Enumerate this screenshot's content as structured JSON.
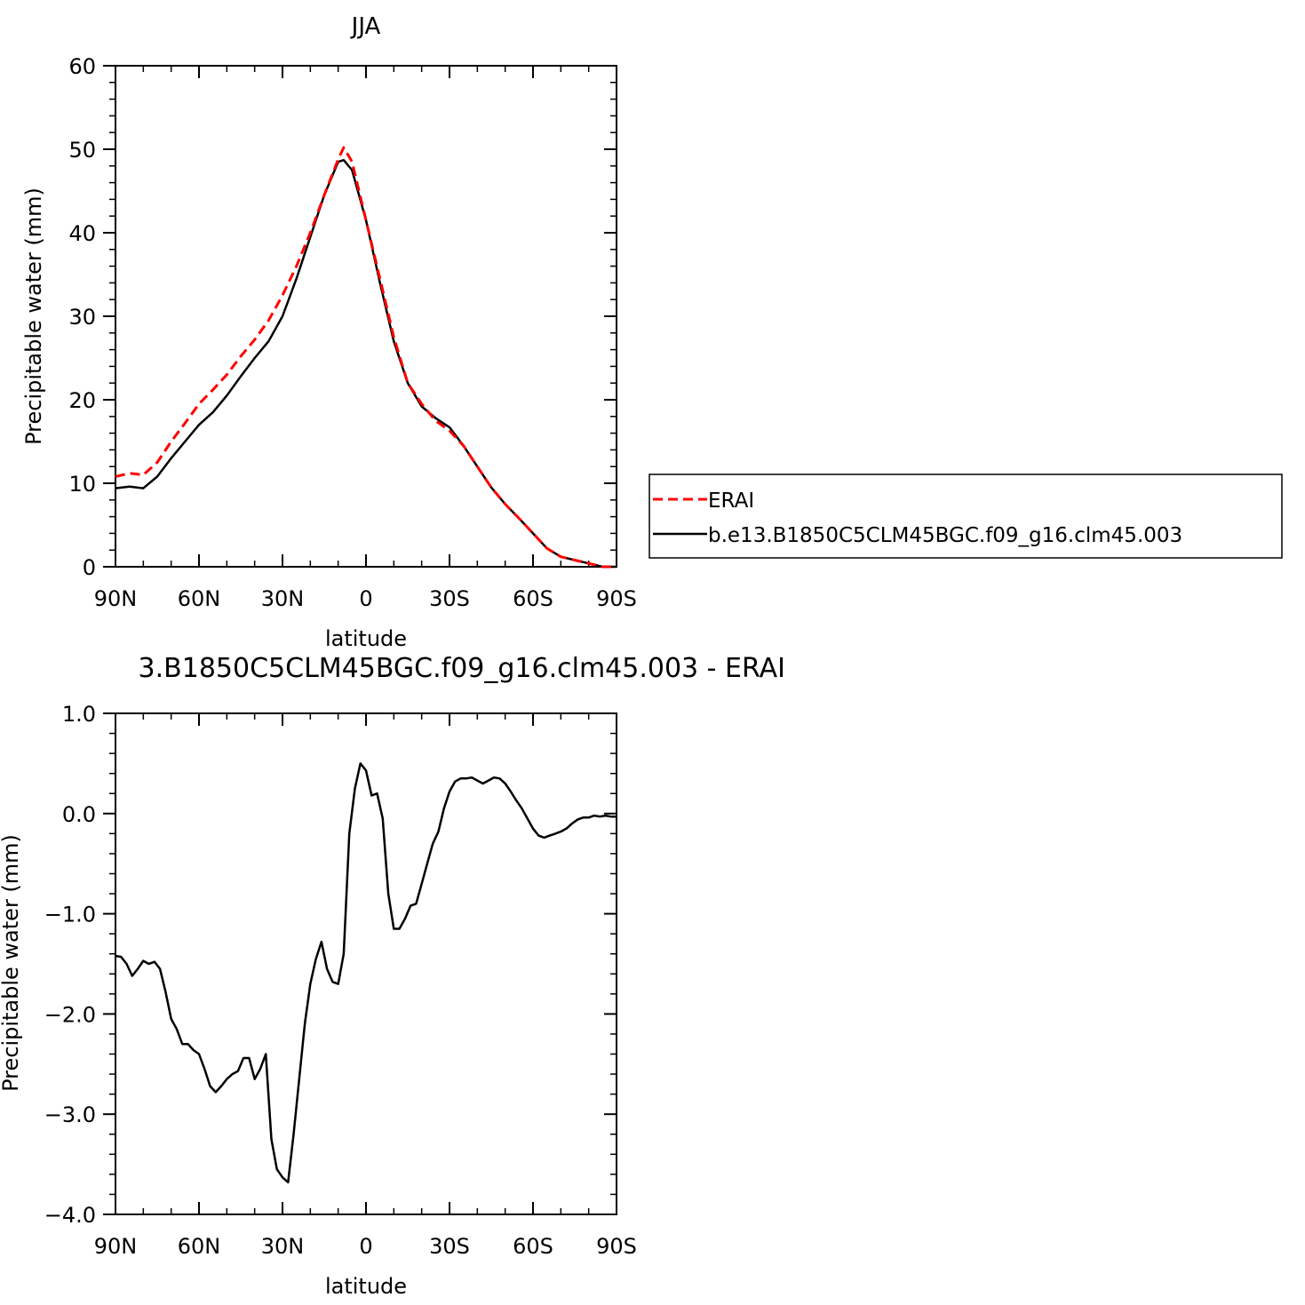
{
  "chart_data": [
    {
      "type": "line",
      "title": "JJA",
      "xlabel": "latitude",
      "ylabel": "Precipitable water (mm)",
      "xlim": [
        90,
        -90
      ],
      "ylim": [
        0,
        60
      ],
      "x_ticks": [
        {
          "value": 90,
          "label": "90N"
        },
        {
          "value": 60,
          "label": "60N"
        },
        {
          "value": 30,
          "label": "30N"
        },
        {
          "value": 0,
          "label": "0"
        },
        {
          "value": -30,
          "label": "30S"
        },
        {
          "value": -60,
          "label": "60S"
        },
        {
          "value": -90,
          "label": "90S"
        }
      ],
      "y_ticks": [
        {
          "value": 0,
          "label": "0"
        },
        {
          "value": 10,
          "label": "10"
        },
        {
          "value": 20,
          "label": "20"
        },
        {
          "value": 30,
          "label": "30"
        },
        {
          "value": 40,
          "label": "40"
        },
        {
          "value": 50,
          "label": "50"
        },
        {
          "value": 60,
          "label": "60"
        }
      ],
      "legend": {
        "placement": "right"
      },
      "series": [
        {
          "name": "ERAI",
          "color": "#ff0000",
          "dash": "dashed",
          "x": [
            90,
            85,
            80,
            75,
            70,
            65,
            60,
            55,
            50,
            45,
            40,
            35,
            30,
            25,
            20,
            15,
            10,
            8,
            5,
            0,
            -5,
            -10,
            -15,
            -20,
            -25,
            -30,
            -35,
            -40,
            -45,
            -50,
            -55,
            -60,
            -65,
            -70,
            -75,
            -80,
            -85,
            -90
          ],
          "y": [
            10.8,
            11.2,
            11.0,
            12.5,
            15.0,
            17.2,
            19.5,
            21.2,
            23.0,
            25.2,
            27.2,
            29.5,
            32.5,
            36.0,
            40.0,
            44.5,
            48.8,
            50.2,
            48.5,
            41.5,
            34.5,
            27.5,
            22.0,
            19.5,
            17.5,
            16.3,
            14.5,
            12.0,
            9.5,
            7.5,
            5.8,
            4.0,
            2.2,
            1.2,
            0.8,
            0.4,
            0.0,
            -0.2
          ]
        },
        {
          "name": "b.e13.B1850C5CLM45BGC.f09_g16.clm45.003",
          "color": "#000000",
          "dash": "solid",
          "x": [
            90,
            85,
            80,
            75,
            70,
            65,
            60,
            55,
            50,
            45,
            40,
            35,
            30,
            25,
            20,
            15,
            10,
            8,
            5,
            0,
            -5,
            -10,
            -15,
            -20,
            -25,
            -30,
            -35,
            -40,
            -45,
            -50,
            -55,
            -60,
            -65,
            -70,
            -75,
            -80,
            -85,
            -90
          ],
          "y": [
            9.4,
            9.6,
            9.4,
            10.8,
            13.0,
            15.0,
            17.0,
            18.5,
            20.5,
            22.8,
            25.0,
            27.0,
            30.0,
            34.5,
            39.5,
            44.5,
            48.5,
            48.7,
            47.5,
            41.5,
            34.0,
            27.0,
            22.0,
            19.2,
            17.8,
            16.7,
            14.5,
            12.0,
            9.5,
            7.5,
            5.8,
            4.0,
            2.2,
            1.2,
            0.8,
            0.4,
            0.0,
            -0.2
          ]
        }
      ]
    },
    {
      "type": "line",
      "title": "3.B1850C5CLM45BGC.f09_g16.clm45.003 - ERAI",
      "xlabel": "latitude",
      "ylabel": "Precipitable water (mm)",
      "xlim": [
        90,
        -90
      ],
      "ylim": [
        -4.0,
        1.0
      ],
      "x_ticks": [
        {
          "value": 90,
          "label": "90N"
        },
        {
          "value": 60,
          "label": "60N"
        },
        {
          "value": 30,
          "label": "30N"
        },
        {
          "value": 0,
          "label": "0"
        },
        {
          "value": -30,
          "label": "30S"
        },
        {
          "value": -60,
          "label": "60S"
        },
        {
          "value": -90,
          "label": "90S"
        }
      ],
      "y_ticks": [
        {
          "value": -4.0,
          "label": "-4.0"
        },
        {
          "value": -3.0,
          "label": "-3.0"
        },
        {
          "value": -2.0,
          "label": "-2.0"
        },
        {
          "value": -1.0,
          "label": "-1.0"
        },
        {
          "value": 0.0,
          "label": "0.0"
        },
        {
          "value": 1.0,
          "label": "1.0"
        }
      ],
      "series": [
        {
          "color": "#000000",
          "dash": "solid",
          "x": [
            90,
            88,
            86,
            84,
            82,
            80,
            78,
            76,
            74,
            72,
            70,
            68,
            66,
            64,
            62,
            60,
            58,
            56,
            54,
            52,
            50,
            48,
            46,
            44,
            42,
            40,
            38,
            36,
            34,
            32,
            30,
            28,
            26,
            24,
            22,
            20,
            18,
            16,
            14,
            12,
            10,
            8,
            6,
            4,
            2,
            0,
            -2,
            -4,
            -6,
            -8,
            -10,
            -12,
            -14,
            -16,
            -18,
            -20,
            -22,
            -24,
            -26,
            -28,
            -30,
            -32,
            -34,
            -36,
            -38,
            -40,
            -42,
            -44,
            -46,
            -48,
            -50,
            -52,
            -54,
            -56,
            -58,
            -60,
            -62,
            -64,
            -66,
            -68,
            -70,
            -72,
            -74,
            -76,
            -78,
            -80,
            -82,
            -84,
            -86,
            -88,
            -90
          ],
          "y": [
            -1.42,
            -1.43,
            -1.5,
            -1.62,
            -1.55,
            -1.47,
            -1.5,
            -1.48,
            -1.55,
            -1.78,
            -2.05,
            -2.15,
            -2.3,
            -2.3,
            -2.36,
            -2.4,
            -2.55,
            -2.72,
            -2.78,
            -2.72,
            -2.65,
            -2.6,
            -2.57,
            -2.44,
            -2.44,
            -2.65,
            -2.55,
            -2.4,
            -3.25,
            -3.55,
            -3.63,
            -3.68,
            -3.2,
            -2.65,
            -2.1,
            -1.7,
            -1.45,
            -1.28,
            -1.55,
            -1.68,
            -1.7,
            -1.4,
            -0.2,
            0.25,
            0.5,
            0.43,
            0.18,
            0.2,
            -0.05,
            -0.8,
            -1.15,
            -1.15,
            -1.05,
            -0.92,
            -0.9,
            -0.7,
            -0.5,
            -0.3,
            -0.18,
            0.05,
            0.22,
            0.32,
            0.35,
            0.35,
            0.36,
            0.33,
            0.3,
            0.33,
            0.36,
            0.35,
            0.3,
            0.22,
            0.13,
            0.05,
            -0.05,
            -0.15,
            -0.22,
            -0.24,
            -0.22,
            -0.2,
            -0.18,
            -0.15,
            -0.1,
            -0.06,
            -0.04,
            -0.04,
            -0.02,
            -0.03,
            -0.02,
            -0.03,
            -0.03
          ]
        }
      ]
    }
  ]
}
